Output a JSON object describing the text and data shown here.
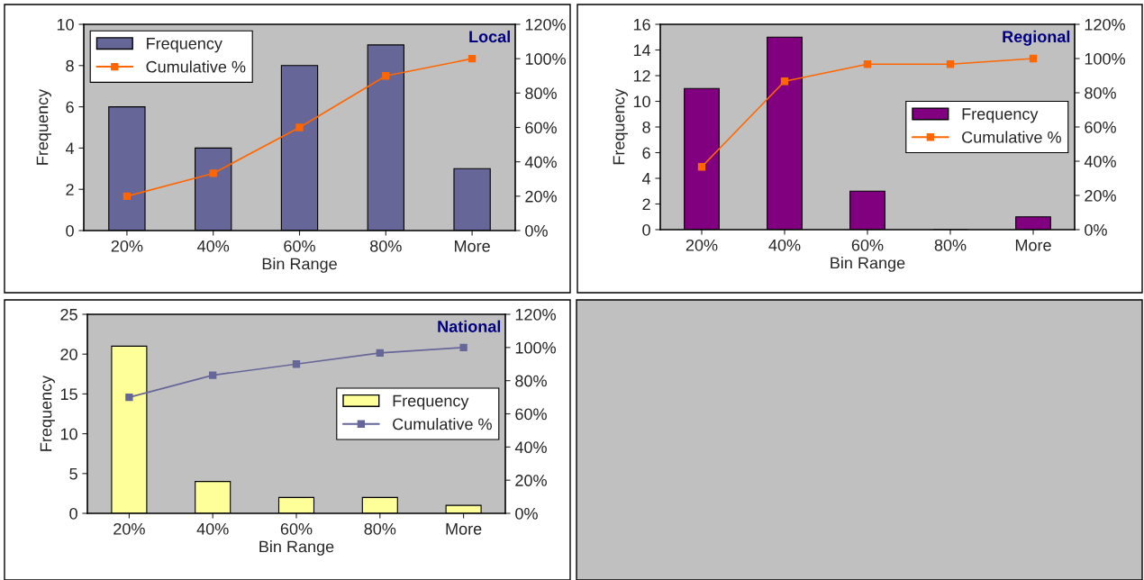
{
  "chart_data": [
    {
      "type": "bar",
      "title": "Local",
      "xlabel": "Bin Range",
      "ylabel": "Frequency",
      "categories": [
        "20%",
        "40%",
        "60%",
        "80%",
        "More"
      ],
      "series": [
        {
          "name": "Frequency",
          "color": "#666699",
          "values": [
            6,
            4,
            8,
            9,
            3
          ]
        },
        {
          "name": "Cumulative %",
          "type": "line",
          "axis": "y2",
          "color": "#ff6600",
          "marker": "square",
          "values": [
            20,
            33.3,
            60,
            90,
            100
          ]
        }
      ],
      "ylim": [
        0,
        10
      ],
      "yticks": [
        0,
        2,
        4,
        6,
        8,
        10
      ],
      "y2lim": [
        0,
        120
      ],
      "y2ticks": [
        {
          "value": 0,
          "label": "0%"
        },
        {
          "value": 20,
          "label": "20%"
        },
        {
          "value": 40,
          "label": "40%"
        },
        {
          "value": 60,
          "label": "60%"
        },
        {
          "value": 80,
          "label": "80%"
        },
        {
          "value": 100,
          "label": "100%"
        },
        {
          "value": 120,
          "label": "120%"
        }
      ],
      "legend": "top left",
      "grid": false
    },
    {
      "type": "bar",
      "title": "Regional",
      "xlabel": "Bin Range",
      "ylabel": "Frequency",
      "categories": [
        "20%",
        "40%",
        "60%",
        "80%",
        "More"
      ],
      "series": [
        {
          "name": "Frequency",
          "color": "#800080",
          "values": [
            11,
            15,
            3,
            0,
            1
          ]
        },
        {
          "name": "Cumulative %",
          "type": "line",
          "axis": "y2",
          "color": "#ff6600",
          "marker": "square",
          "values": [
            36.7,
            86.7,
            96.7,
            96.7,
            100
          ]
        }
      ],
      "ylim": [
        0,
        16
      ],
      "yticks": [
        0,
        2,
        4,
        6,
        8,
        10,
        12,
        14,
        16
      ],
      "y2lim": [
        0,
        120
      ],
      "y2ticks": [
        {
          "value": 0,
          "label": "0%"
        },
        {
          "value": 20,
          "label": "20%"
        },
        {
          "value": 40,
          "label": "40%"
        },
        {
          "value": 60,
          "label": "60%"
        },
        {
          "value": 80,
          "label": "80%"
        },
        {
          "value": 100,
          "label": "100%"
        },
        {
          "value": 120,
          "label": "120%"
        }
      ],
      "legend": "right",
      "grid": false
    },
    {
      "type": "bar",
      "title": "National",
      "xlabel": "Bin Range",
      "ylabel": "Frequency",
      "categories": [
        "20%",
        "40%",
        "60%",
        "80%",
        "More"
      ],
      "series": [
        {
          "name": "Frequency",
          "color": "#ffff99",
          "values": [
            21,
            4,
            2,
            2,
            1
          ]
        },
        {
          "name": "Cumulative %",
          "type": "line",
          "axis": "y2",
          "color": "#666699",
          "marker": "square",
          "values": [
            70,
            83.3,
            90,
            96.7,
            100
          ]
        }
      ],
      "ylim": [
        0,
        25
      ],
      "yticks": [
        0,
        5,
        10,
        15,
        20,
        25
      ],
      "y2lim": [
        0,
        120
      ],
      "y2ticks": [
        {
          "value": 0,
          "label": "0%"
        },
        {
          "value": 20,
          "label": "20%"
        },
        {
          "value": 40,
          "label": "40%"
        },
        {
          "value": 60,
          "label": "60%"
        },
        {
          "value": 80,
          "label": "80%"
        },
        {
          "value": 100,
          "label": "100%"
        },
        {
          "value": 120,
          "label": "120%"
        }
      ],
      "legend": "right",
      "grid": false
    }
  ]
}
